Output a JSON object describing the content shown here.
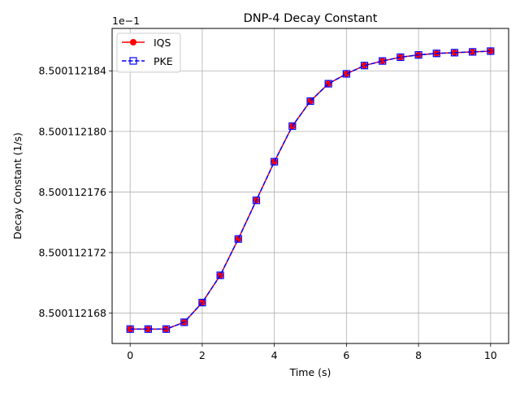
{
  "chart_data": {
    "type": "line",
    "title": "DNP-4 Decay Constant",
    "xlabel": "Time (s)",
    "ylabel": "Decay Constant (1/s)",
    "offset_text": "1e−1",
    "x_ticks": [
      "0",
      "2",
      "4",
      "6",
      "8",
      "10"
    ],
    "x_tick_values": [
      0,
      2,
      4,
      6,
      8,
      10
    ],
    "y_ticks": [
      "8.500112168",
      "8.500112172",
      "8.500112176",
      "8.500112180",
      "8.500112184"
    ],
    "y_tick_values": [
      8.500112168,
      8.500112172,
      8.500112176,
      8.50011218,
      8.500112184
    ],
    "xlim": [
      -0.5,
      10.5
    ],
    "ylim": [
      8.500112166,
      8.5001121868
    ],
    "grid": true,
    "legend_position": "top-left",
    "x": [
      0,
      0.5,
      1,
      1.5,
      2,
      2.5,
      3,
      3.5,
      4,
      4.5,
      5,
      5.5,
      6,
      6.5,
      7,
      7.5,
      8,
      8.5,
      9,
      9.5,
      10
    ],
    "series": [
      {
        "name": "IQS",
        "color": "#ff0000",
        "marker": "circle",
        "line": "solid",
        "values": [
          8.50011216695,
          8.50011216695,
          8.50011216695,
          8.5001121674,
          8.5001121687,
          8.5001121705,
          8.5001121729,
          8.50011217545,
          8.500112178,
          8.50011218035,
          8.500112182,
          8.50011218315,
          8.5001121838,
          8.50011218435,
          8.50011218465,
          8.5001121849,
          8.50011218505,
          8.50011218515,
          8.5001121852,
          8.50011218525,
          8.5001121853
        ]
      },
      {
        "name": "PKE",
        "color": "#0000ff",
        "marker": "square",
        "line": "dashed",
        "values": [
          8.50011216695,
          8.50011216695,
          8.50011216695,
          8.5001121674,
          8.5001121687,
          8.5001121705,
          8.5001121729,
          8.50011217545,
          8.500112178,
          8.50011218035,
          8.500112182,
          8.50011218315,
          8.5001121838,
          8.50011218435,
          8.50011218465,
          8.5001121849,
          8.50011218505,
          8.50011218515,
          8.5001121852,
          8.50011218525,
          8.5001121853
        ]
      }
    ]
  }
}
